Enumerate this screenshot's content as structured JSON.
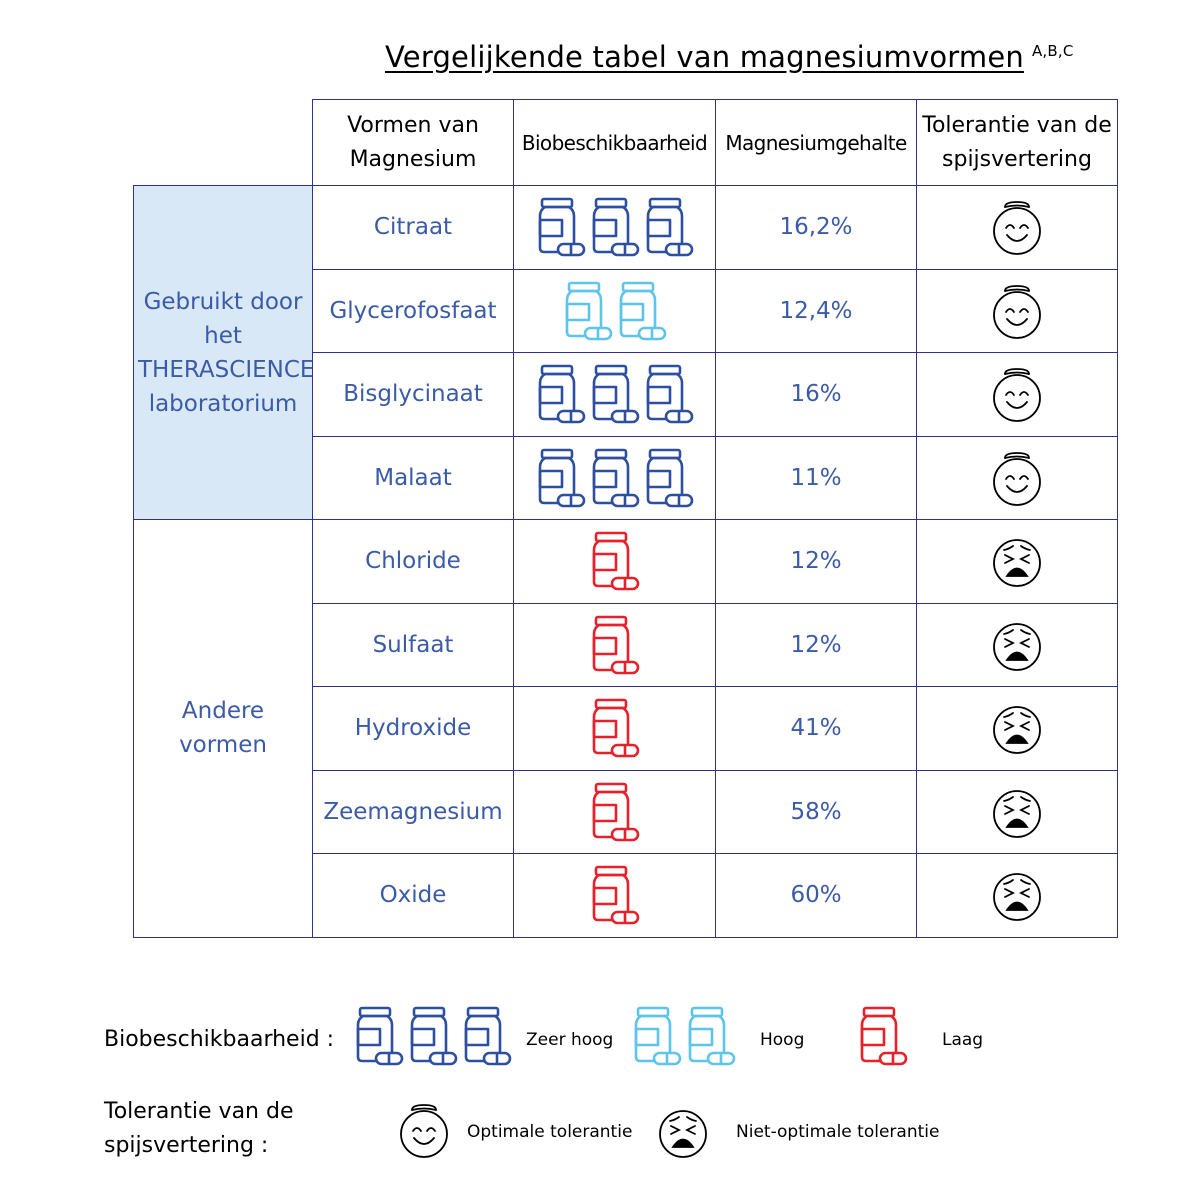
{
  "title": "Vergelijkende tabel van magnesiumvormen",
  "title_refs": "A,B,C",
  "colors": {
    "very_high": "#2d4f9e",
    "high": "#5ec4ec",
    "low": "#e8202a",
    "text_blue": "#3b5ba8",
    "group_bg": "#d9e8f6",
    "border": "#2e3192"
  },
  "headers": {
    "form": "Vormen van Magnesium",
    "bio": "Biobeschikbaarheid",
    "content": "Magnesiumgehalte",
    "tolerance": "Tolerantie van de spijsvertering"
  },
  "groups": [
    {
      "label": "Gebruikt door het THERASCIENCE laboratorium",
      "highlighted": true
    },
    {
      "label": "Andere vormen",
      "highlighted": false
    }
  ],
  "rows": [
    {
      "group": 0,
      "form": "Citraat",
      "bioavailability": "very_high",
      "content": "16,2%",
      "tolerance": "optimal"
    },
    {
      "group": 0,
      "form": "Glycerofosfaat",
      "bioavailability": "high",
      "content": "12,4%",
      "tolerance": "optimal"
    },
    {
      "group": 0,
      "form": "Bisglycinaat",
      "bioavailability": "very_high",
      "content": "16%",
      "tolerance": "optimal"
    },
    {
      "group": 0,
      "form": "Malaat",
      "bioavailability": "very_high",
      "content": "11%",
      "tolerance": "optimal"
    },
    {
      "group": 1,
      "form": "Chloride",
      "bioavailability": "low",
      "content": "12%",
      "tolerance": "non_optimal"
    },
    {
      "group": 1,
      "form": "Sulfaat",
      "bioavailability": "low",
      "content": "12%",
      "tolerance": "non_optimal"
    },
    {
      "group": 1,
      "form": "Hydroxide",
      "bioavailability": "low",
      "content": "41%",
      "tolerance": "non_optimal"
    },
    {
      "group": 1,
      "form": "Zeemagnesium",
      "bioavailability": "low",
      "content": "58%",
      "tolerance": "non_optimal"
    },
    {
      "group": 1,
      "form": "Oxide",
      "bioavailability": "low",
      "content": "60%",
      "tolerance": "non_optimal"
    }
  ],
  "legend": {
    "bio_label": "Biobeschikbaarheid :",
    "very_high": "Zeer hoog",
    "high": "Hoog",
    "low": "Laag",
    "tol_label": "Tolerantie van de spijsvertering :",
    "optimal": "Optimale tolerantie",
    "non_optimal": "Niet-optimale tolerantie"
  }
}
